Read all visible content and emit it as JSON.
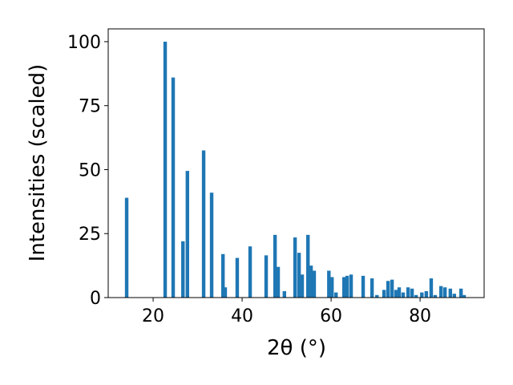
{
  "chart_data": {
    "type": "bar",
    "xlabel": "2θ (°)",
    "ylabel": "Intensities (scaled)",
    "color": "#1f77b4",
    "x": [
      14.05,
      22.7,
      24.5,
      26.7,
      27.7,
      31.35,
      33.15,
      35.7,
      36.2,
      38.9,
      41.8,
      45.4,
      47.4,
      48.1,
      49.5,
      51.9,
      52.8,
      53.5,
      54.8,
      55.5,
      56.2,
      59.5,
      60.2,
      61.1,
      62.9,
      63.6,
      64.5,
      67.2,
      69.2,
      70.3,
      71.9,
      72.8,
      73.7,
      74.6,
      75.3,
      76.2,
      77.3,
      78.2,
      79.1,
      80.4,
      81.4,
      82.5,
      83.4,
      84.7,
      85.6,
      86.8,
      87.7,
      89.2,
      89.9
    ],
    "values": [
      39,
      100,
      86,
      22,
      49.5,
      57.5,
      41,
      17,
      4,
      15.5,
      20,
      16.5,
      24.5,
      12,
      2.5,
      23.5,
      17.5,
      9,
      24.5,
      12.5,
      10.5,
      10.5,
      8,
      2,
      8,
      8.5,
      9,
      8.5,
      7.5,
      1,
      3,
      6.5,
      7,
      3,
      4,
      2,
      4,
      3.5,
      1,
      2,
      2.5,
      7.5,
      1,
      4.5,
      4,
      3.5,
      1.5,
      3.5,
      1
    ],
    "xlim": [
      9.9,
      94.4
    ],
    "ylim": [
      0,
      105
    ],
    "xticks": [
      20,
      40,
      60,
      80
    ],
    "yticks": [
      0,
      25,
      50,
      75,
      100
    ]
  }
}
